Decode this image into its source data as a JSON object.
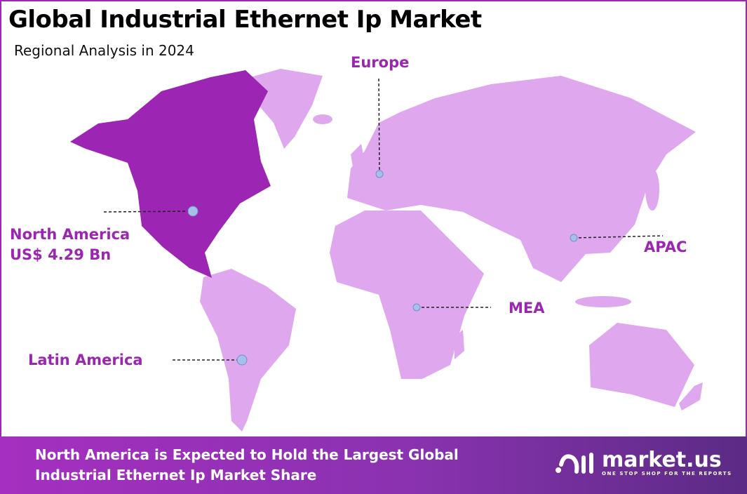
{
  "header": {
    "title": "Global Industrial Ethernet Ip Market",
    "subtitle": "Regional Analysis in 2024"
  },
  "colors": {
    "accent": "#9b27b0",
    "highlight_region": "#9c25b4",
    "other_regions": "#dfa7ee",
    "marker": "#a7c0ea"
  },
  "regions": [
    {
      "name": "North America",
      "value": "US$ 4.29 Bn",
      "highlighted": true
    },
    {
      "name": "Europe"
    },
    {
      "name": "APAC"
    },
    {
      "name": "MEA"
    },
    {
      "name": "Latin America"
    }
  ],
  "footer": {
    "line1": "North America is Expected to Hold the Largest Global",
    "line2": "Industrial Ethernet Ip Market Share",
    "logo_name": "market.us",
    "logo_tagline": "ONE STOP SHOP FOR THE REPORTS"
  }
}
